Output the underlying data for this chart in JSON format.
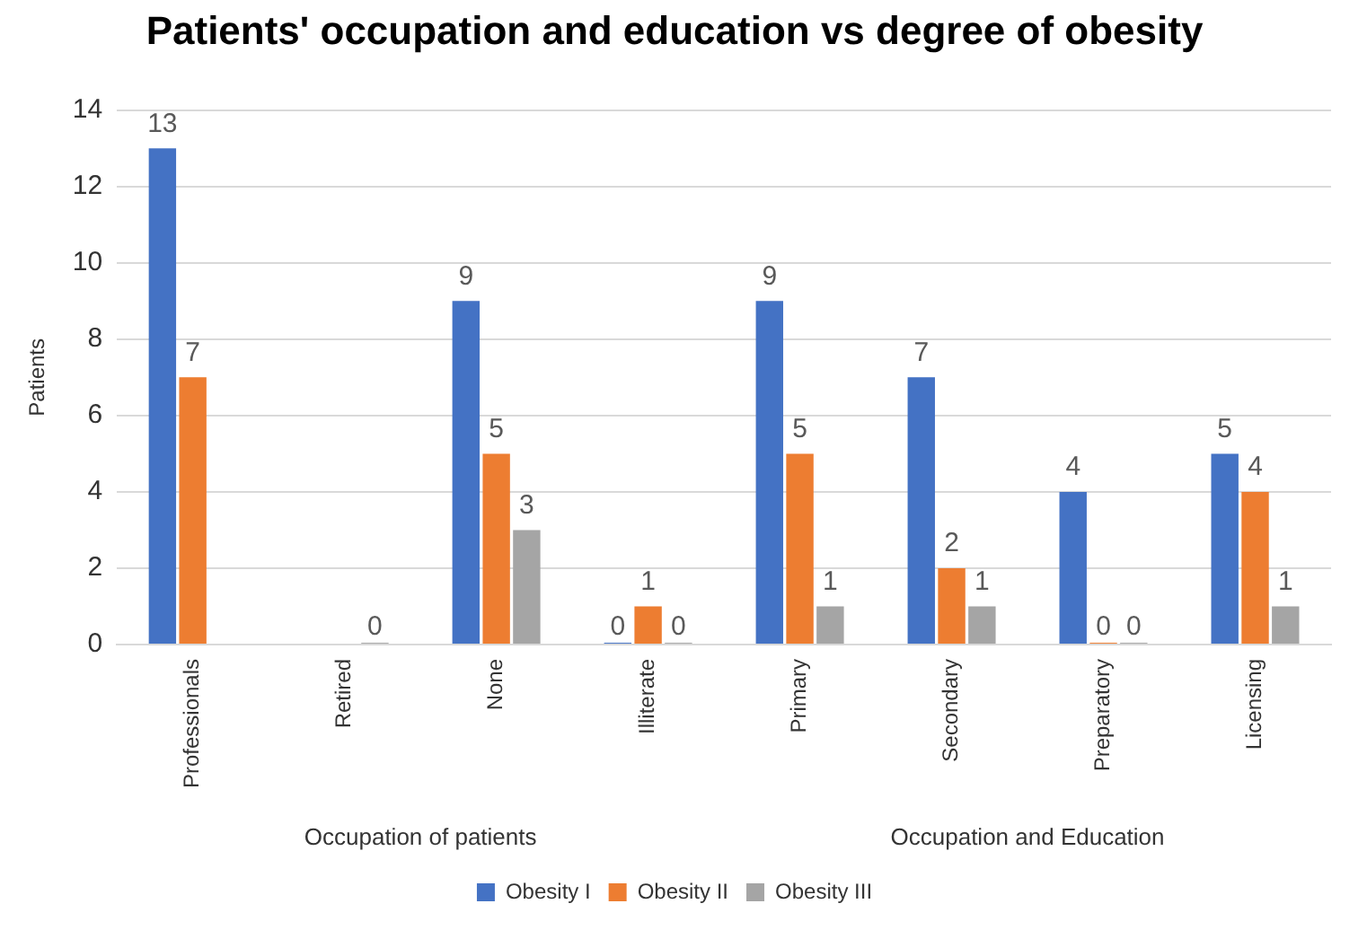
{
  "chart_data": {
    "type": "bar",
    "title": "Patients' occupation and education vs degree of obesity",
    "ylabel": "Patients",
    "categories": [
      "Professionals",
      "Retired",
      "None",
      "Illiterate",
      "Primary",
      "Secondary",
      "Preparatory",
      "Licensing"
    ],
    "series": [
      {
        "name": "Obesity I",
        "color": "#4472c4",
        "values": [
          13,
          null,
          9,
          0,
          9,
          7,
          4,
          5
        ],
        "value_labels": [
          "13",
          null,
          "9",
          "0",
          "9",
          "7",
          "4",
          "5"
        ]
      },
      {
        "name": "Obesity II",
        "color": "#ed7d31",
        "values": [
          7,
          null,
          5,
          1,
          5,
          2,
          0,
          4
        ],
        "value_labels": [
          "7",
          null,
          "5",
          "1",
          "5",
          "2",
          "0",
          "4"
        ]
      },
      {
        "name": "Obesity III",
        "color": "#a5a5a5",
        "values": [
          null,
          0,
          3,
          0,
          1,
          1,
          0,
          1
        ],
        "value_labels": [
          null,
          "0",
          "3",
          "0",
          "1",
          "1",
          "0",
          "1"
        ]
      }
    ],
    "ylim": [
      0,
      14
    ],
    "yticks": [
      0,
      2,
      4,
      6,
      8,
      10,
      12,
      14
    ],
    "grid": "y",
    "legend": "bottom",
    "annotations": [
      "Occupation of patients",
      "Occupation and Education"
    ]
  }
}
